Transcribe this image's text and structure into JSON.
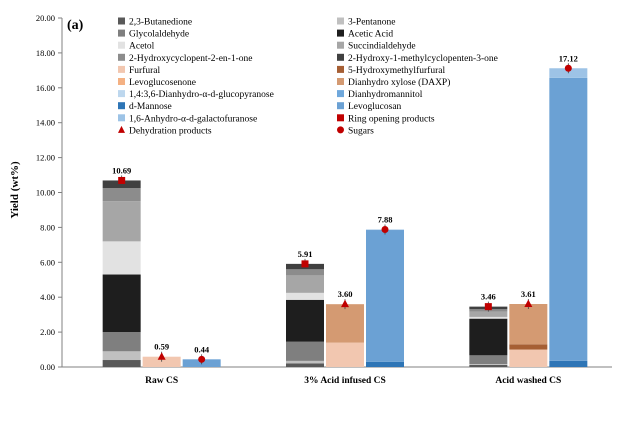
{
  "chart_data": {
    "type": "bar",
    "stacked": true,
    "panel_label": "(a)",
    "ylabel": "Yield (wt%)",
    "ylim": [
      0,
      20
    ],
    "ytick_step": 2,
    "ytick_labels": [
      "0.00",
      "2.00",
      "4.00",
      "6.00",
      "8.00",
      "10.00",
      "12.00",
      "14.00",
      "16.00",
      "18.00",
      "20.00"
    ],
    "grid": false,
    "legend_position": "top-left",
    "categories": [
      "Raw CS",
      "3% Acid infused CS",
      "Acid washed CS"
    ],
    "groups": [
      "Ring opening products",
      "Dehydration products",
      "Sugars"
    ],
    "series": [
      {
        "name": "2,3-Butanedione",
        "color": "#595959",
        "group": "Ring opening products",
        "values": [
          0.4,
          0.2,
          0.12
        ]
      },
      {
        "name": "3-Pentanone",
        "color": "#c0c0c0",
        "group": "Ring opening products",
        "values": [
          0.5,
          0.15,
          0.05
        ]
      },
      {
        "name": "Glycolaldehyde",
        "color": "#7f7f7f",
        "group": "Ring opening products",
        "values": [
          1.1,
          1.1,
          0.5
        ]
      },
      {
        "name": "Acetic Acid",
        "color": "#1e1e1e",
        "group": "Ring opening products",
        "values": [
          3.3,
          2.4,
          2.1
        ]
      },
      {
        "name": "Acetol",
        "color": "#e2e2e2",
        "group": "Ring opening products",
        "values": [
          1.9,
          0.4,
          0.1
        ]
      },
      {
        "name": "Succindialdehyde",
        "color": "#a6a6a6",
        "group": "Ring opening products",
        "values": [
          2.3,
          1.0,
          0.3
        ]
      },
      {
        "name": "2-Hydroxycyclopent-2-en-1-one",
        "color": "#8c8c8c",
        "group": "Ring opening products",
        "values": [
          0.75,
          0.35,
          0.14
        ]
      },
      {
        "name": "2-Hydroxy-1-methylcyclopenten-3-one",
        "color": "#404040",
        "group": "Ring opening products",
        "values": [
          0.44,
          0.31,
          0.15
        ]
      },
      {
        "name": "Furfural",
        "color": "#f2c7b0",
        "group": "Dehydration products",
        "values": [
          0.59,
          1.4,
          1.0
        ]
      },
      {
        "name": "5-Hydroxymethylfurfural",
        "color": "#a65f34",
        "group": "Dehydration products",
        "values": [
          0.0,
          0.0,
          0.3
        ]
      },
      {
        "name": "Levoglucosenone",
        "color": "#f4b183",
        "group": "Dehydration products",
        "values": [
          0.0,
          0.0,
          0.0
        ]
      },
      {
        "name": "Dianhydro xylose (DAXP)",
        "color": "#d49a72",
        "group": "Dehydration products",
        "values": [
          0.0,
          2.2,
          2.31
        ]
      },
      {
        "name": "1,4:3,6-Dianhydro-α-d-glucopyranose",
        "color": "#bdd7ee",
        "group": "Sugars",
        "values": [
          0.0,
          0.0,
          0.0
        ]
      },
      {
        "name": "Dianhydromannitol",
        "color": "#6fa8dc",
        "group": "Sugars",
        "values": [
          0.0,
          0.0,
          0.0
        ]
      },
      {
        "name": "d-Mannose",
        "color": "#2e75b6",
        "group": "Sugars",
        "values": [
          0.0,
          0.3,
          0.35
        ]
      },
      {
        "name": "Levoglucosan",
        "color": "#6ba1d4",
        "group": "Sugars",
        "values": [
          0.44,
          7.55,
          16.22
        ]
      },
      {
        "name": "1,6-Anhydro-α-d-galactofuranose",
        "color": "#9dc3e6",
        "group": "Sugars",
        "values": [
          0.0,
          0.03,
          0.55
        ]
      }
    ],
    "markers": [
      {
        "name": "Ring opening products",
        "shape": "square",
        "color": "#c00000"
      },
      {
        "name": "Dehydration products",
        "shape": "triangle",
        "color": "#c00000"
      },
      {
        "name": "Sugars",
        "shape": "circle",
        "color": "#c00000"
      }
    ],
    "totals": [
      {
        "group": "Ring opening products",
        "values": [
          10.69,
          5.91,
          3.46
        ],
        "labels": [
          "10.69",
          "5.91",
          "3.46"
        ]
      },
      {
        "group": "Dehydration products",
        "values": [
          0.59,
          3.6,
          3.61
        ],
        "labels": [
          "0.59",
          "3.60",
          "3.61"
        ]
      },
      {
        "group": "Sugars",
        "values": [
          0.44,
          7.88,
          17.12
        ],
        "labels": [
          "0.44",
          "7.88",
          "17.12"
        ]
      }
    ]
  }
}
